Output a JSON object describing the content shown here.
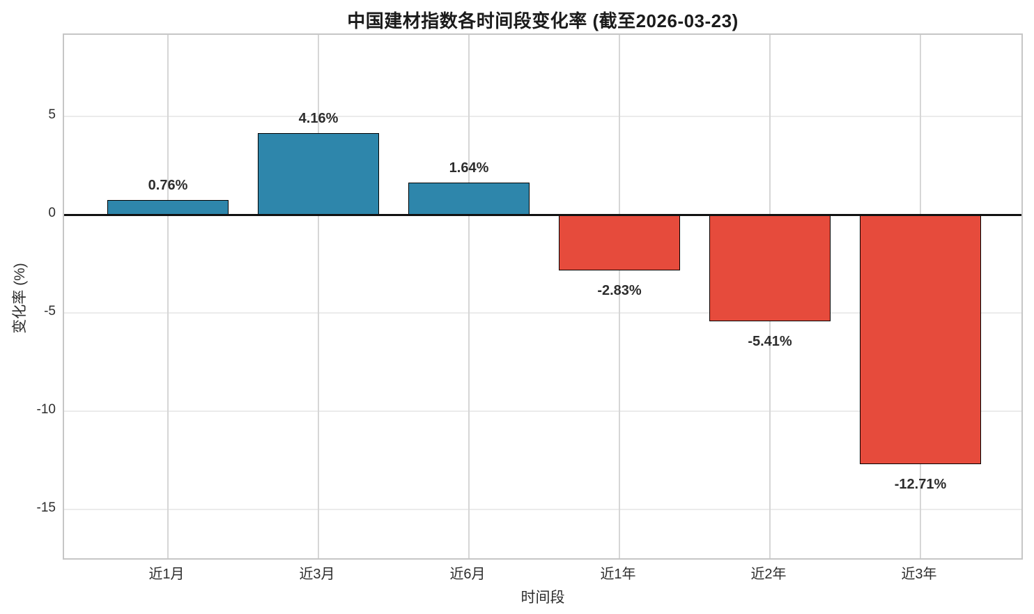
{
  "chart_data": {
    "type": "bar",
    "title": "中国建材指数各时间段变化率 (截至2026-03-23)",
    "xlabel": "时间段",
    "ylabel": "变化率 (%)",
    "categories": [
      "近1月",
      "近3月",
      "近6月",
      "近1年",
      "近2年",
      "近3年"
    ],
    "values": [
      0.76,
      4.16,
      1.64,
      -2.83,
      -5.41,
      -12.71
    ],
    "value_labels": [
      "0.76%",
      "4.16%",
      "1.64%",
      "-2.83%",
      "-5.41%",
      "-12.71%"
    ],
    "yticks": [
      5,
      0,
      -5,
      -10,
      -15
    ],
    "ylim": [
      -17.6,
      9.2
    ],
    "grid": true,
    "legend": null,
    "positive_color": "#2e86ab",
    "negative_color": "#e64b3c",
    "bar_edge_color": "#000000",
    "background_color": "#ffffff"
  }
}
